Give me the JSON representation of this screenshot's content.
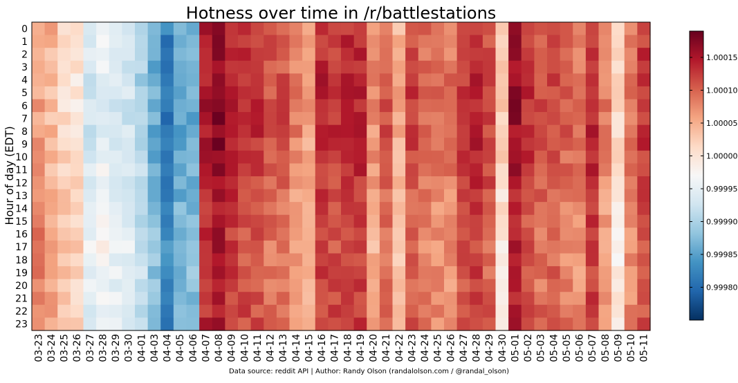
{
  "chart_data": {
    "type": "heatmap",
    "title": "Hotness over time in /r/battlestations",
    "ylabel": "Hour of day (EDT)",
    "xlabel": "",
    "x_categories": [
      "03-23",
      "03-24",
      "03-25",
      "03-26",
      "03-27",
      "03-28",
      "03-29",
      "03-30",
      "04-01",
      "04-03",
      "04-04",
      "04-05",
      "04-06",
      "04-07",
      "04-08",
      "04-09",
      "04-10",
      "04-11",
      "04-12",
      "04-13",
      "04-14",
      "04-15",
      "04-16",
      "04-17",
      "04-18",
      "04-19",
      "04-20",
      "04-21",
      "04-22",
      "04-23",
      "04-24",
      "04-25",
      "04-26",
      "04-27",
      "04-28",
      "04-29",
      "04-30",
      "05-01",
      "05-02",
      "05-03",
      "05-04",
      "05-05",
      "05-06",
      "05-07",
      "05-08",
      "05-09",
      "05-10",
      "05-11"
    ],
    "y_categories": [
      "0",
      "1",
      "2",
      "3",
      "4",
      "5",
      "6",
      "7",
      "8",
      "9",
      "10",
      "11",
      "12",
      "13",
      "14",
      "15",
      "16",
      "17",
      "18",
      "19",
      "20",
      "21",
      "22",
      "23"
    ],
    "colormap": "RdBu_r",
    "colorbar": {
      "vmin": 0.99975,
      "vmax": 1.00019,
      "ticks": [
        0.9998,
        0.99985,
        0.9999,
        0.99995,
        1.0,
        1.00005,
        1.0001,
        1.00015
      ],
      "tick_labels": [
        "0.99980",
        "0.99985",
        "0.99990",
        "0.99995",
        "1.00000",
        "1.00005",
        "1.00010",
        "1.00015"
      ]
    },
    "column_levels": [
      1.00007,
      1.00005,
      1.00002,
      1.00001,
      0.99994,
      0.99996,
      0.99994,
      0.99994,
      0.99991,
      0.99987,
      0.99982,
      0.99986,
      0.99987,
      1.00014,
      1.00016,
      1.00013,
      1.00012,
      1.00012,
      1.0001,
      1.0001,
      1.00007,
      1.00005,
      1.00013,
      1.00012,
      1.00013,
      1.00013,
      1.00006,
      1.0001,
      1.00004,
      1.00011,
      1.00009,
      1.00008,
      1.00008,
      1.00012,
      1.00013,
      1.00011,
      1.00001,
      1.00015,
      1.00012,
      1.0001,
      1.00011,
      1.00009,
      1.00008,
      1.00013,
      1.00007,
      1.0,
      1.00008,
      1.00012
    ]
  },
  "footer": {
    "source": "Data source: reddit API | Author: Randy Olson (randalolson.com / @randal_olson)"
  }
}
